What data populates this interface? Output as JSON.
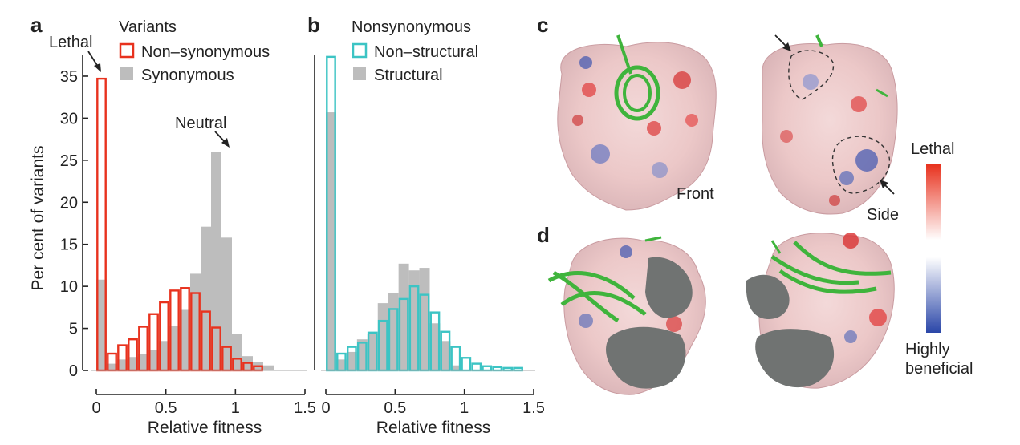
{
  "panels": {
    "a": "a",
    "b": "b",
    "c": "c",
    "d": "d"
  },
  "chart_data": [
    {
      "panel": "a",
      "type": "bar",
      "xlabel": "Relative fitness",
      "ylabel": "Per cent of variants",
      "xlim": [
        0,
        1.5
      ],
      "ylim": [
        0,
        37
      ],
      "xticks": [
        "0",
        "0.5",
        "1",
        "1.5"
      ],
      "yticks": [
        "0",
        "5",
        "10",
        "15",
        "20",
        "25",
        "30",
        "35"
      ],
      "bin_width": 0.075,
      "bin_starts": [
        0,
        0.075,
        0.15,
        0.225,
        0.3,
        0.375,
        0.45,
        0.525,
        0.6,
        0.675,
        0.75,
        0.825,
        0.9,
        0.975,
        1.05,
        1.125,
        1.2,
        1.275,
        1.35
      ],
      "legend_title": "Variants",
      "legend_position": "top",
      "series": [
        {
          "name": "Non–synonymous",
          "style": "outline",
          "color": "#e8321e",
          "values": [
            34.7,
            2.0,
            3.0,
            3.7,
            5.2,
            6.7,
            8.1,
            9.5,
            9.8,
            9.2,
            7.0,
            5.1,
            2.8,
            1.4,
            0.9,
            0.5,
            0,
            0,
            0
          ]
        },
        {
          "name": "Synonymous",
          "style": "filled",
          "color": "#bdbdbd",
          "values": [
            10.8,
            0.8,
            1.3,
            1.6,
            2.0,
            2.4,
            3.5,
            5.3,
            7.2,
            11.5,
            17.1,
            26.0,
            15.8,
            4.3,
            1.7,
            1.0,
            0.6,
            0,
            0
          ]
        }
      ],
      "annotations": [
        {
          "text": "Lethal",
          "at": [
            0.04,
            34.7
          ]
        },
        {
          "text": "Neutral",
          "at": [
            0.95,
            26.0
          ]
        }
      ]
    },
    {
      "panel": "b",
      "type": "bar",
      "xlabel": "Relative fitness",
      "ylabel": "",
      "xlim": [
        0,
        1.5
      ],
      "ylim": [
        0,
        37
      ],
      "xticks": [
        "0",
        "0.5",
        "1",
        "1.5"
      ],
      "bin_width": 0.075,
      "bin_starts": [
        0,
        0.075,
        0.15,
        0.225,
        0.3,
        0.375,
        0.45,
        0.525,
        0.6,
        0.675,
        0.75,
        0.825,
        0.9,
        0.975,
        1.05,
        1.125,
        1.2,
        1.275,
        1.35
      ],
      "legend_title": "Nonsynonymous",
      "legend_position": "top",
      "series": [
        {
          "name": "Non–structural",
          "style": "outline",
          "color": "#3cc4c4",
          "values": [
            37.3,
            2.0,
            2.8,
            3.3,
            4.5,
            5.9,
            7.3,
            8.5,
            10.0,
            9.0,
            6.9,
            4.6,
            2.8,
            1.5,
            0.8,
            0.5,
            0.4,
            0.3,
            0.3
          ]
        },
        {
          "name": "Structural",
          "style": "filled",
          "color": "#bdbdbd",
          "values": [
            30.7,
            1.3,
            2.2,
            3.7,
            4.3,
            8.0,
            9.2,
            12.7,
            11.9,
            12.2,
            5.6,
            3.5,
            0.6,
            0,
            0,
            0,
            0,
            0,
            0
          ]
        }
      ]
    }
  ],
  "structures": {
    "c_front_label": "Front",
    "c_side_label": "Side",
    "colorbar_top": "Lethal",
    "colorbar_bottom_line1": "Highly",
    "colorbar_bottom_line2": "beneficial"
  },
  "colors": {
    "lethal": "#e8321e",
    "beneficial": "#2a46a8",
    "dna": "#3fb43c",
    "cut_surface": "#707372"
  }
}
